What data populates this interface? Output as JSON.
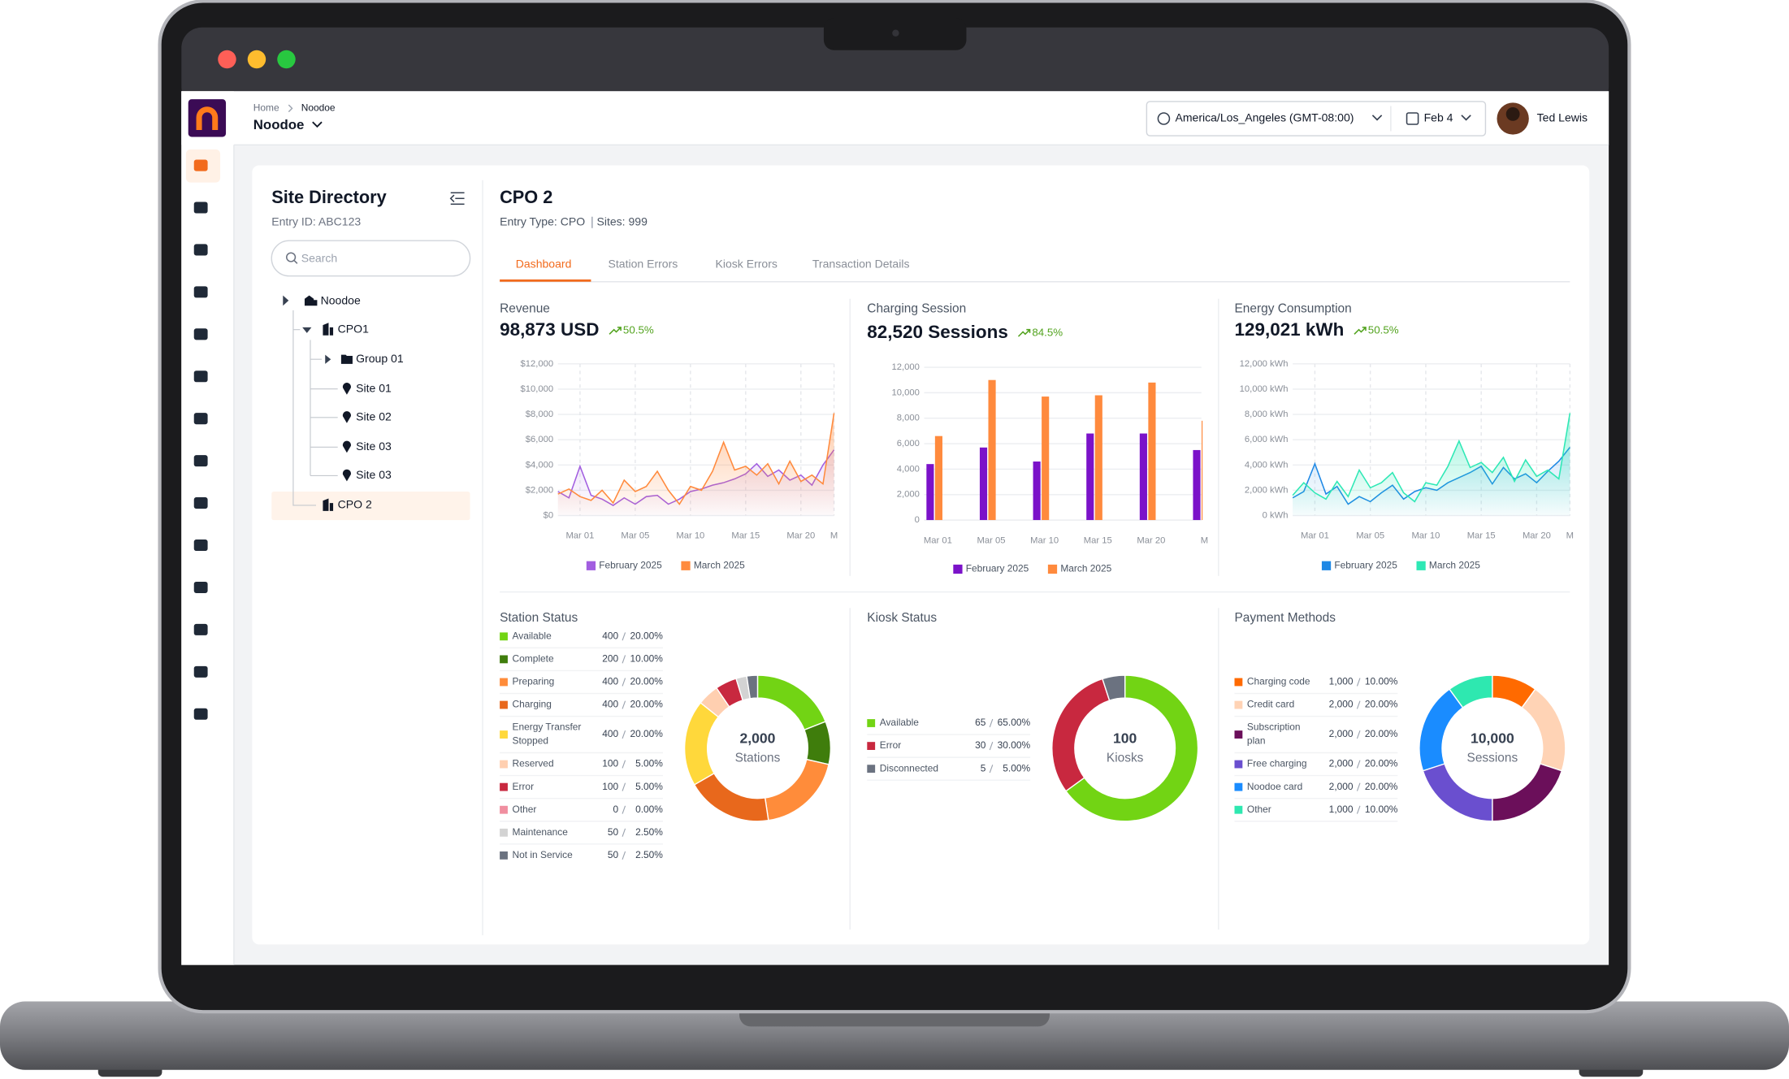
{
  "header": {
    "breadcrumb": [
      "Home",
      "Noodoe"
    ],
    "title": "Noodoe",
    "timezone": "America/Los_Angeles (GMT-08:00)",
    "date": "Feb 4",
    "user": "Ted Lewis"
  },
  "directory": {
    "title": "Site Directory",
    "entry_id": "Entry ID: ABC123",
    "search_placeholder": "Search",
    "tree": [
      {
        "label": "Noodoe",
        "children": [
          {
            "label": "CPO1",
            "children": [
              {
                "label": "Group 01"
              },
              {
                "label": "Site 01"
              },
              {
                "label": "Site 02"
              },
              {
                "label": "Site 03"
              },
              {
                "label": "Site 03"
              }
            ]
          },
          {
            "label": "CPO 2"
          }
        ]
      }
    ]
  },
  "site": {
    "title": "CPO 2",
    "entry_type": "Entry Type: CPO",
    "sites": "Sites: 999",
    "tabs": [
      "Dashboard",
      "Station Errors",
      "Kiosk Errors",
      "Transaction Details"
    ]
  },
  "chart_data": [
    {
      "type": "line",
      "title": "Revenue",
      "total": "98,873 USD",
      "change": "50.5%",
      "categories": [
        null,
        null,
        "Mar 01",
        null,
        null,
        null,
        null,
        "Mar 05",
        null,
        null,
        null,
        null,
        "Mar 10",
        null,
        null,
        null,
        null,
        "Mar 15",
        null,
        null,
        null,
        null,
        "Mar 20",
        null,
        null,
        "M"
      ],
      "series": [
        {
          "name": "February 2025",
          "color": "#a25ee0",
          "values": [
            1900,
            1400,
            3900,
            1600,
            1300,
            800,
            1400,
            900,
            1500,
            1600,
            900,
            1300,
            1900,
            2100,
            2400,
            2600,
            2900,
            3300,
            4100,
            3100,
            3600,
            2800,
            3200,
            2400,
            4000,
            5200
          ]
        },
        {
          "name": "March 2025",
          "color": "#ff8a3d",
          "values": [
            1700,
            2100,
            1500,
            1200,
            2000,
            1000,
            2800,
            1900,
            2300,
            3500,
            2000,
            900,
            2300,
            2000,
            3500,
            5800,
            3600,
            3900,
            3200,
            4100,
            2500,
            4300,
            2700,
            3200,
            2500,
            8100
          ]
        }
      ],
      "ylim": [
        0,
        12000
      ],
      "yticks": [
        {
          "value": 0,
          "label": "$0"
        },
        {
          "value": 2000,
          "label": "$2,000"
        },
        {
          "value": 4000,
          "label": "$4,000"
        },
        {
          "value": 6000,
          "label": "$6,000"
        },
        {
          "value": 8000,
          "label": "$8,000"
        },
        {
          "value": 10000,
          "label": "$10,000"
        },
        {
          "value": 12000,
          "label": "$12,000"
        }
      ],
      "grid": true
    },
    {
      "type": "bar",
      "title": "Charging Session",
      "total": "82,520 Sessions",
      "change": "84.5%",
      "categories": [
        "Mar 01",
        "Mar 05",
        "Mar 10",
        "Mar 15",
        "Mar 20",
        "M"
      ],
      "series": [
        {
          "name": "February 2025",
          "color": "#7b12c9",
          "values": [
            4400,
            5700,
            4600,
            6800,
            6800,
            5500
          ]
        },
        {
          "name": "March 2025",
          "color": "#ff8a3d",
          "values": [
            6600,
            11000,
            9700,
            9800,
            10800,
            7800
          ]
        }
      ],
      "ylim": [
        0,
        12000
      ],
      "yticks": [
        0,
        {
          "value": 2000,
          "label": "2,000"
        },
        {
          "value": 4000,
          "label": "4,000"
        },
        {
          "value": 6000,
          "label": "6,000"
        },
        {
          "value": 8000,
          "label": "8,000"
        },
        {
          "value": 10000,
          "label": "10,000"
        },
        {
          "value": 12000,
          "label": "12,000"
        }
      ],
      "grid": true
    },
    {
      "type": "line",
      "title": "Energy Consumption",
      "total": "129,021 kWh",
      "change": "50.5%",
      "categories": [
        null,
        null,
        "Mar 01",
        null,
        null,
        null,
        null,
        "Mar 05",
        null,
        null,
        null,
        null,
        "Mar 10",
        null,
        null,
        null,
        null,
        "Mar 15",
        null,
        null,
        null,
        null,
        "Mar 20",
        null,
        null,
        "M"
      ],
      "series": [
        {
          "name": "February 2025",
          "color": "#1e88e5",
          "values": [
            1400,
            1900,
            4100,
            1700,
            2300,
            900,
            1500,
            1100,
            1800,
            2400,
            1300,
            1900,
            2200,
            2000,
            2600,
            3000,
            3400,
            3900,
            2500,
            3800,
            2900,
            3300,
            2600,
            3500,
            4300,
            5400
          ]
        },
        {
          "name": "March 2025",
          "color": "#2ee8b5",
          "values": [
            1600,
            2600,
            1800,
            1300,
            2700,
            1500,
            3600,
            2200,
            2600,
            3400,
            1800,
            1100,
            2600,
            2400,
            3900,
            5900,
            3800,
            4200,
            3400,
            4600,
            2700,
            4400,
            3100,
            3600,
            2900,
            8100
          ]
        }
      ],
      "ylim": [
        0,
        12000
      ],
      "yticks": [
        {
          "value": 0,
          "label": "0 kWh"
        },
        {
          "value": 2000,
          "label": "2,000 kWh"
        },
        {
          "value": 4000,
          "label": "4,000 kWh"
        },
        {
          "value": 6000,
          "label": "6,000 kWh"
        },
        {
          "value": 8000,
          "label": "8,000 kWh"
        },
        {
          "value": 10000,
          "label": "10,000 kWh"
        },
        {
          "value": 12000,
          "label": "12,000 kWh"
        }
      ],
      "grid": true
    },
    {
      "type": "donut",
      "title": "Station Status",
      "total_label": "2,000",
      "total_unit": "Stations",
      "categories": [
        "Available",
        "Complete",
        "Preparing",
        "Charging",
        "Energy Transfer Stopped",
        "Reserved",
        "Error",
        "Other",
        "Maintenance",
        "Not in Service"
      ],
      "values": [
        400,
        200,
        400,
        400,
        400,
        100,
        100,
        0,
        50,
        50
      ],
      "percent_labels": [
        "20.00%",
        "10.00%",
        "20.00%",
        "20.00%",
        "20.00%",
        "5.00%",
        "5.00%",
        "0.00%",
        "2.50%",
        "2.50%"
      ],
      "colors": [
        "#72d414",
        "#3f7d0c",
        "#ff8c3a",
        "#e8681c",
        "#ffd83b",
        "#ffcfb0",
        "#c8283f",
        "#f08fa0",
        "#d3d3d3",
        "#6b7280"
      ]
    },
    {
      "type": "donut",
      "title": "Kiosk Status",
      "total_label": "100",
      "total_unit": "Kiosks",
      "categories": [
        "Available",
        "Error",
        "Disconnected"
      ],
      "values": [
        65,
        30,
        5
      ],
      "percent_labels": [
        "65.00%",
        "30.00%",
        "5.00%"
      ],
      "colors": [
        "#72d414",
        "#c8283f",
        "#6b7280"
      ]
    },
    {
      "type": "donut",
      "title": "Payment Methods",
      "total_label": "10,000",
      "total_unit": "Sessions",
      "categories": [
        "Charging code",
        "Credit card",
        "Subscription plan",
        "Free charging",
        "Noodoe card",
        "Other"
      ],
      "values": [
        1000,
        2000,
        2000,
        2000,
        2000,
        1000
      ],
      "value_labels": [
        "1,000",
        "2,000",
        "2,000",
        "2,000",
        "2,000",
        "1,000"
      ],
      "percent_labels": [
        "10.00%",
        "20.00%",
        "20.00%",
        "20.00%",
        "20.00%",
        "10.00%"
      ],
      "colors": [
        "#ff6a00",
        "#ffd3b5",
        "#6b0f5a",
        "#6a4fcf",
        "#1a8cff",
        "#2ee8b0"
      ]
    }
  ]
}
